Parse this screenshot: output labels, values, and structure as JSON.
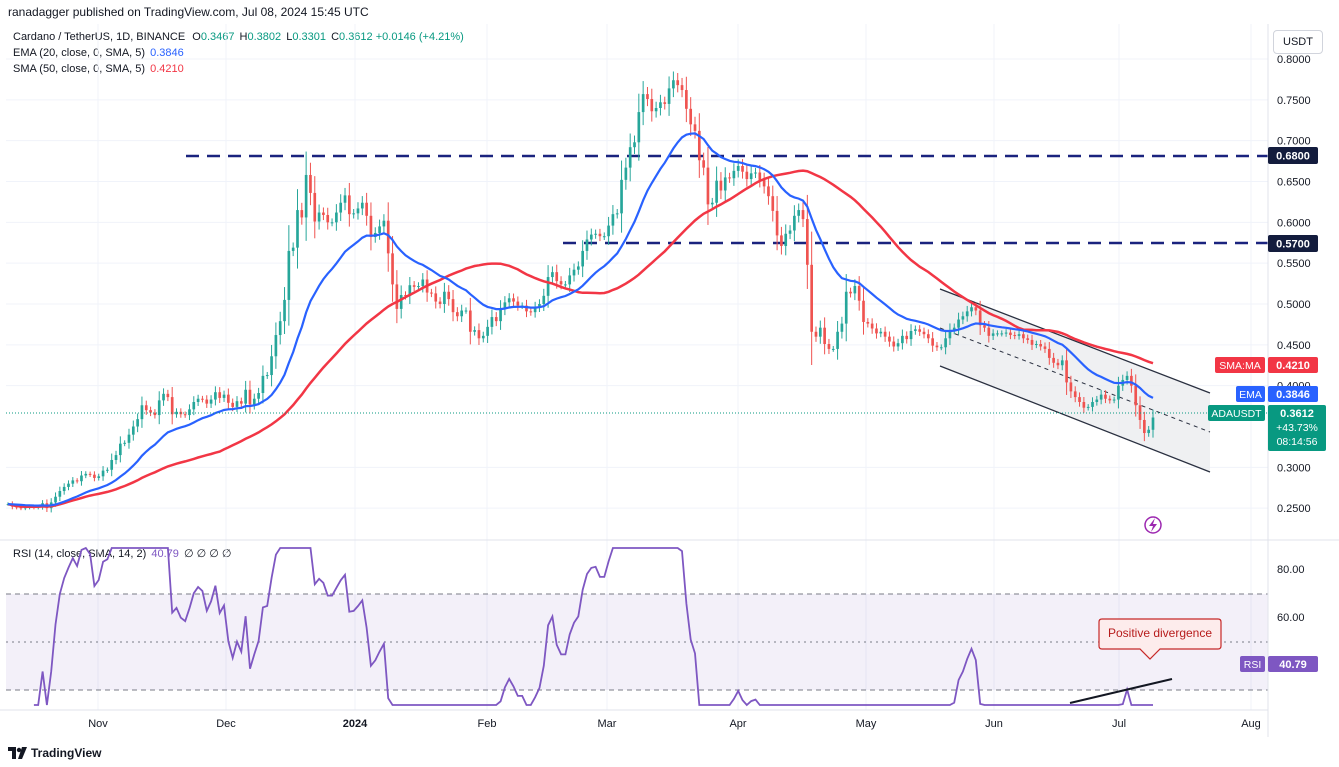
{
  "header": {
    "published": "ranadagger published on TradingView.com, Jul 08, 2024 15:45 UTC"
  },
  "legend": {
    "symbol": "Cardano / TetherUS, 1D, BINANCE",
    "ohlc_o_label": "O",
    "ohlc_o": "0.3467",
    "ohlc_h_label": "H",
    "ohlc_h": "0.3802",
    "ohlc_l_label": "L",
    "ohlc_l": "0.3301",
    "ohlc_c_label": "C",
    "ohlc_c": "0.3612",
    "change": "+0.0146 (+4.21%)",
    "ema_label": "EMA (20, close, 0, SMA, 5)",
    "ema_value": "0.3846",
    "sma_label": "SMA (50, close, 0, SMA, 5)",
    "sma_value": "0.4210",
    "rsi_label": "RSI (14, close, SMA, 14, 2)",
    "rsi_value": "40.79",
    "rsi_extra": "∅ ∅ ∅ ∅"
  },
  "currency_button": "USDT",
  "price_badges": {
    "level_high": "0.6800",
    "level_low": "0.5700",
    "sma_tag": "SMA:MA",
    "sma_val": "0.4210",
    "ema_tag": "EMA",
    "ema_val": "0.3846",
    "symbol_tag": "ADAUSDT",
    "price": "0.3612",
    "pct": "+43.73%",
    "countdown": "08:14:56",
    "rsi_tag": "RSI",
    "rsi_val": "40.79"
  },
  "annotation": "Positive divergence",
  "brand": "TradingView",
  "colors": {
    "up": "#26a69a",
    "down": "#ef5350",
    "ema": "#2962ff",
    "sma": "#f23645",
    "level": "#1a237e",
    "rsi": "#7e57c2",
    "channel": "#e9ebee"
  },
  "chart_data": {
    "type": "candlestick",
    "y_axis": {
      "min": 0.23,
      "max": 0.805,
      "ticks": [
        "0.8000",
        "0.7500",
        "0.7000",
        "0.6500",
        "0.6000",
        "0.5500",
        "0.5000",
        "0.4500",
        "0.4000",
        "0.3000",
        "0.2500"
      ]
    },
    "x_axis_labels": [
      "Nov",
      "Dec",
      "2024",
      "Feb",
      "Mar",
      "Apr",
      "May",
      "Jun",
      "Jul",
      "Aug"
    ],
    "horizontal_levels": [
      0.68,
      0.57
    ],
    "closes": [
      0.255,
      0.252,
      0.251,
      0.25,
      0.251,
      0.252,
      0.251,
      0.252,
      0.256,
      0.25,
      0.257,
      0.264,
      0.271,
      0.276,
      0.28,
      0.284,
      0.283,
      0.29,
      0.292,
      0.291,
      0.287,
      0.289,
      0.296,
      0.297,
      0.309,
      0.315,
      0.329,
      0.33,
      0.34,
      0.35,
      0.359,
      0.376,
      0.37,
      0.367,
      0.364,
      0.382,
      0.39,
      0.386,
      0.365,
      0.368,
      0.365,
      0.364,
      0.371,
      0.38,
      0.384,
      0.383,
      0.378,
      0.383,
      0.392,
      0.385,
      0.389,
      0.379,
      0.374,
      0.381,
      0.378,
      0.395,
      0.377,
      0.384,
      0.391,
      0.412,
      0.413,
      0.436,
      0.462,
      0.479,
      0.505,
      0.565,
      0.569,
      0.615,
      0.606,
      0.658,
      0.636,
      0.601,
      0.612,
      0.609,
      0.6,
      0.6,
      0.612,
      0.624,
      0.633,
      0.61,
      0.611,
      0.617,
      0.624,
      0.608,
      0.582,
      0.587,
      0.595,
      0.602,
      0.562,
      0.524,
      0.494,
      0.511,
      0.51,
      0.523,
      0.521,
      0.522,
      0.53,
      0.514,
      0.513,
      0.503,
      0.5,
      0.515,
      0.506,
      0.49,
      0.485,
      0.492,
      0.492,
      0.466,
      0.468,
      0.458,
      0.461,
      0.472,
      0.484,
      0.479,
      0.494,
      0.502,
      0.507,
      0.503,
      0.498,
      0.498,
      0.491,
      0.49,
      0.496,
      0.5,
      0.51,
      0.533,
      0.539,
      0.528,
      0.524,
      0.524,
      0.535,
      0.542,
      0.546,
      0.565,
      0.579,
      0.585,
      0.586,
      0.583,
      0.583,
      0.596,
      0.61,
      0.611,
      0.652,
      0.667,
      0.692,
      0.698,
      0.735,
      0.757,
      0.751,
      0.736,
      0.74,
      0.747,
      0.745,
      0.764,
      0.774,
      0.768,
      0.762,
      0.739,
      0.72,
      0.712,
      0.676,
      0.667,
      0.622,
      0.624,
      0.651,
      0.639,
      0.655,
      0.654,
      0.663,
      0.669,
      0.662,
      0.653,
      0.66,
      0.661,
      0.652,
      0.644,
      0.632,
      0.614,
      0.584,
      0.571,
      0.586,
      0.59,
      0.608,
      0.615,
      0.604,
      0.548,
      0.466,
      0.46,
      0.471,
      0.451,
      0.445,
      0.445,
      0.466,
      0.476,
      0.515,
      0.513,
      0.522,
      0.504,
      0.478,
      0.476,
      0.47,
      0.464,
      0.466,
      0.46,
      0.454,
      0.448,
      0.452,
      0.461,
      0.457,
      0.467,
      0.469,
      0.466,
      0.463,
      0.458,
      0.449,
      0.447,
      0.447,
      0.458,
      0.468,
      0.471,
      0.481,
      0.485,
      0.491,
      0.496,
      0.492,
      0.474,
      0.471,
      0.461,
      0.464,
      0.464,
      0.464,
      0.465,
      0.462,
      0.461,
      0.463,
      0.458,
      0.456,
      0.45,
      0.451,
      0.448,
      0.445,
      0.434,
      0.428,
      0.425,
      0.431,
      0.404,
      0.393,
      0.386,
      0.38,
      0.373,
      0.374,
      0.38,
      0.383,
      0.389,
      0.384,
      0.382,
      0.383,
      0.4,
      0.407,
      0.412,
      0.4,
      0.376,
      0.358,
      0.342,
      0.346,
      0.361
    ]
  }
}
